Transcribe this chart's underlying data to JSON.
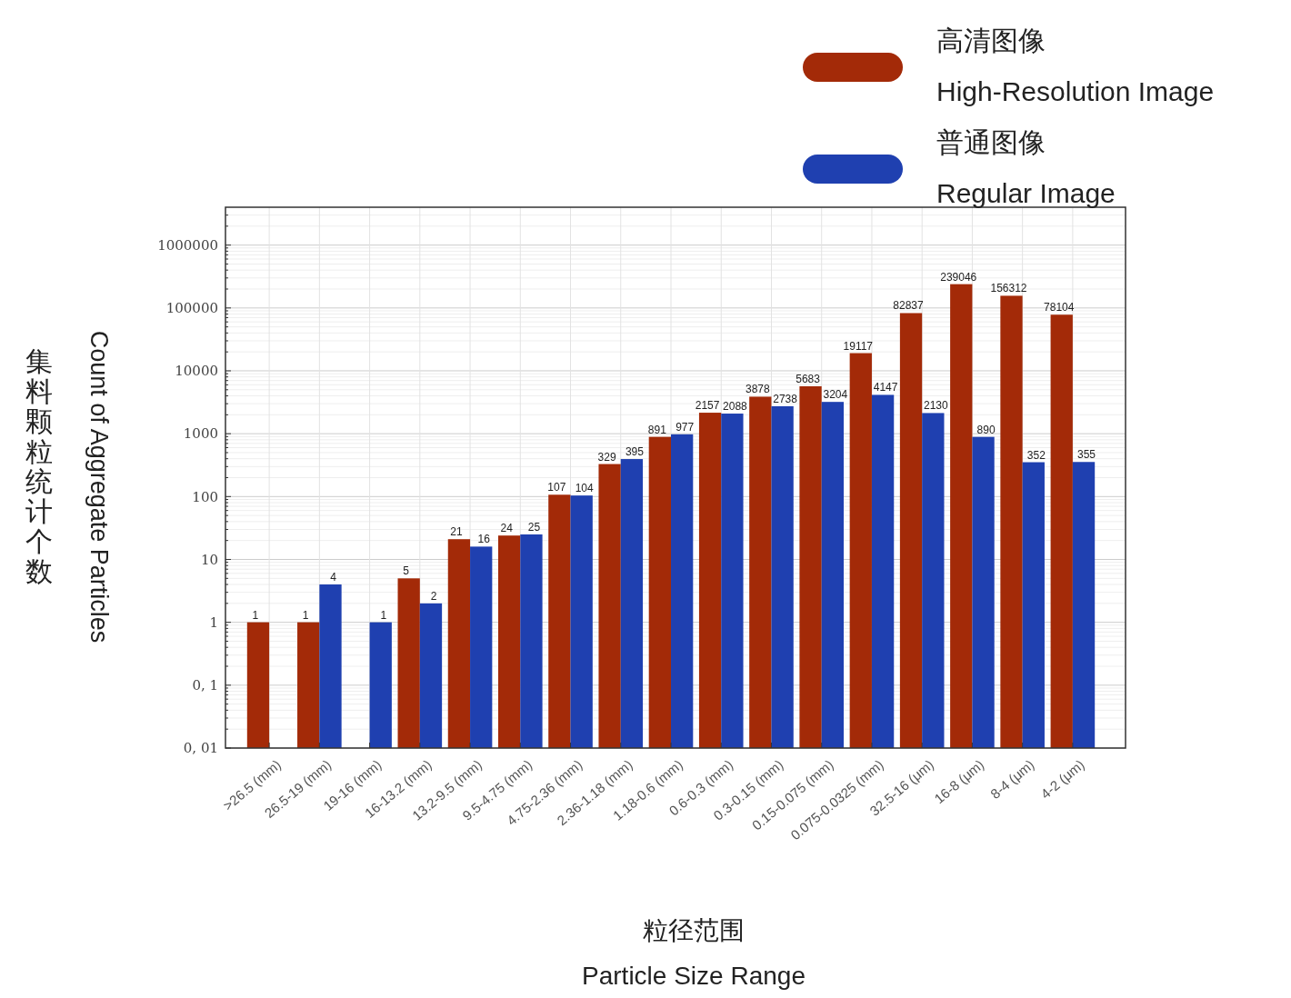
{
  "chart_data": {
    "type": "bar",
    "xlabel": "粒径范围\nParticle Size Range",
    "ylabel": "集料颗粒统计个数\nCount of Aggregate Particles",
    "categories": [
      ">26.5 (mm)",
      "26.5-19 (mm)",
      "19-16 (mm)",
      "16-13.2 (mm)",
      "13.2-9.5 (mm)",
      "9.5-4.75 (mm)",
      "4.75-2.36 (mm)",
      "2.36-1.18 (mm)",
      "1.18-0.6 (mm)",
      "0.6-0.3 (mm)",
      "0.3-0.15 (mm)",
      "0.15-0.075 (mm)",
      "0.075-0.0325 (mm)",
      "32.5-16 (μm)",
      "16-8 (μm)",
      "8-4 (μm)",
      "4-2 (μm)"
    ],
    "series": [
      {
        "name": "高清图像\nHigh-Resolution Image",
        "color": "#a32a08",
        "values": [
          1,
          1,
          null,
          5,
          21,
          24,
          107,
          329,
          891,
          2157,
          3878,
          5683,
          19117,
          82837,
          239046,
          156312,
          78104
        ]
      },
      {
        "name": "普通图像\nRegular Image",
        "color": "#1f40b0",
        "values": [
          null,
          4,
          1,
          2,
          16,
          25,
          104,
          395,
          977,
          2088,
          2738,
          3204,
          4147,
          2130,
          890,
          352,
          355
        ]
      }
    ],
    "log": true,
    "ylim": [
      0.01,
      4000000
    ],
    "yticks": [
      {
        "value": 0.01,
        "label": "0, 01"
      },
      {
        "value": 0.1,
        "label": "0, 1"
      },
      1,
      10,
      100,
      1000,
      10000,
      100000,
      1000000
    ],
    "grid": true,
    "legend": "top right",
    "data_labels": true
  }
}
